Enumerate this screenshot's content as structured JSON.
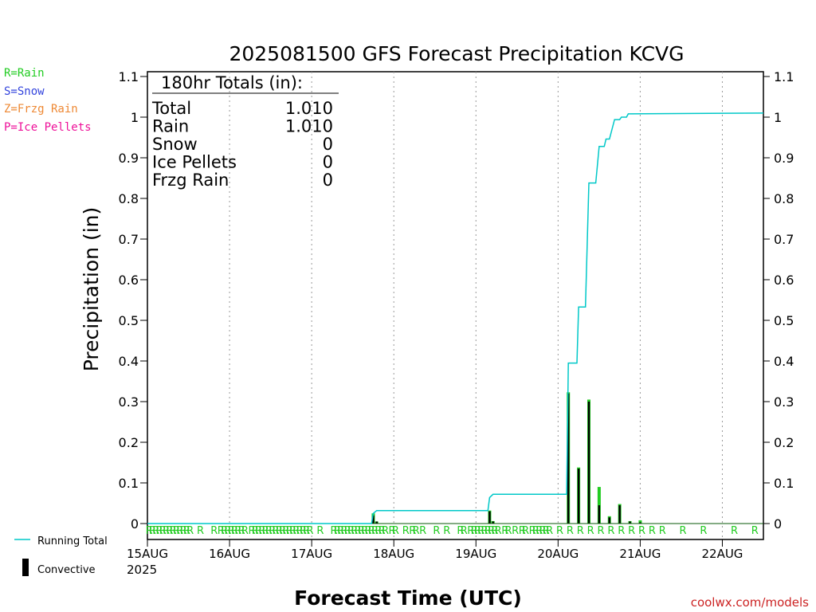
{
  "chart_data": {
    "type": "bar",
    "title": "2025081500 GFS Forecast Precipitation KCVG",
    "xlabel": "Forecast Time (UTC)",
    "ylabel": "Precipitation (in)",
    "ylim": [
      0,
      1.1
    ],
    "yticks": [
      0,
      0.1,
      0.2,
      0.3,
      0.4,
      0.5,
      0.6,
      0.7,
      0.8,
      0.9,
      1,
      1.1
    ],
    "ytick_labels": [
      "0",
      "0.1",
      "0.2",
      "0.3",
      "0.4",
      "0.5",
      "0.6",
      "0.7",
      "0.8",
      "0.9",
      "1",
      "1.1"
    ],
    "x_days": [
      "15AUG",
      "16AUG",
      "17AUG",
      "18AUG",
      "19AUG",
      "20AUG",
      "21AUG",
      "22AUG"
    ],
    "x_year": "2025",
    "xlim_hours": [
      0,
      180
    ],
    "grid": "vertical dotted at each day",
    "legend_left": [
      {
        "label": "R=Rain",
        "color": "#22cc22"
      },
      {
        "label": "S=Snow",
        "color": "#3344dd"
      },
      {
        "label": "Z=Frzg Rain",
        "color": "#ee8833"
      },
      {
        "label": "P=Ice Pellets",
        "color": "#ee1199"
      }
    ],
    "legend_bottom": [
      {
        "label": "Running Total",
        "color": "#00c8c8",
        "kind": "line"
      },
      {
        "label": "Convective",
        "color": "#000000",
        "kind": "bar"
      }
    ],
    "totals": {
      "header": "180hr Totals (in):",
      "rows": [
        {
          "name": "Total",
          "value": "1.010"
        },
        {
          "name": "Rain",
          "value": "1.010"
        },
        {
          "name": "Snow",
          "value": "0"
        },
        {
          "name": "Ice Pellets",
          "value": "0"
        },
        {
          "name": "Frzg Rain",
          "value": "0"
        }
      ]
    },
    "precip_bars": [
      {
        "hour": 66,
        "total": 0.025,
        "convective": 0.02
      },
      {
        "hour": 67,
        "total": 0.005,
        "convective": 0.005
      },
      {
        "hour": 100,
        "total": 0.032,
        "convective": 0.03
      },
      {
        "hour": 101,
        "total": 0.006,
        "convective": 0.005
      },
      {
        "hour": 123,
        "total": 0.323,
        "convective": 0.32
      },
      {
        "hour": 126,
        "total": 0.138,
        "convective": 0.135
      },
      {
        "hour": 129,
        "total": 0.305,
        "convective": 0.3
      },
      {
        "hour": 132,
        "total": 0.09,
        "convective": 0.045
      },
      {
        "hour": 135,
        "total": 0.018,
        "convective": 0.015
      },
      {
        "hour": 138,
        "total": 0.048,
        "convective": 0.045
      },
      {
        "hour": 141,
        "total": 0.006,
        "convective": 0.005
      },
      {
        "hour": 144,
        "total": 0.008,
        "convective": 0.003
      }
    ],
    "running_total": [
      [
        0,
        0
      ],
      [
        65.5,
        0
      ],
      [
        66,
        0.025
      ],
      [
        67,
        0.032
      ],
      [
        99.5,
        0.032
      ],
      [
        100,
        0.064
      ],
      [
        101,
        0.072
      ],
      [
        122.5,
        0.072
      ],
      [
        123,
        0.395
      ],
      [
        125.5,
        0.395
      ],
      [
        126,
        0.533
      ],
      [
        128,
        0.533
      ],
      [
        129,
        0.838
      ],
      [
        131,
        0.838
      ],
      [
        132,
        0.928
      ],
      [
        133.5,
        0.928
      ],
      [
        134,
        0.946
      ],
      [
        135,
        0.946
      ],
      [
        136.5,
        0.994
      ],
      [
        138,
        0.994
      ],
      [
        138.5,
        1.0
      ],
      [
        140,
        1.0
      ],
      [
        140.5,
        1.008
      ],
      [
        180,
        1.01
      ]
    ],
    "ptype_markers": {
      "letter": "R",
      "color": "#22cc22",
      "hours": [
        0.5,
        1.5,
        2.5,
        3.5,
        4.5,
        5.5,
        6.5,
        7.5,
        8.5,
        9.5,
        10.5,
        11.5,
        12.5,
        15.5,
        19.5,
        21.5,
        22.5,
        23.5,
        24.5,
        25.5,
        26.5,
        27.5,
        28.5,
        30.5,
        31.5,
        32.5,
        33.5,
        34.5,
        35.5,
        36.5,
        37.5,
        38.5,
        39.5,
        40.5,
        41.5,
        42.5,
        43.5,
        44.5,
        45.5,
        46.5,
        47.5,
        50.5,
        54.5,
        55.5,
        56.5,
        57.5,
        58.5,
        59.5,
        60.5,
        61.5,
        62.5,
        63.5,
        64.5,
        65.5,
        66.5,
        67.5,
        68.5,
        69.5,
        71.5,
        72.5,
        75.5,
        77.5,
        78.5,
        80.5,
        84.5,
        87.5,
        91.5,
        92.5,
        94.5,
        95.5,
        96.5,
        97.5,
        98.5,
        99.5,
        100.5,
        101.5,
        102.5,
        104.5,
        105.5,
        107.5,
        109.5,
        110.5,
        112.5,
        113.5,
        114.5,
        115.5,
        116.5,
        117.5,
        120.5,
        123.5,
        126.5,
        129.5,
        132.5,
        135.5,
        138.5,
        141.5,
        144.5,
        147.5,
        150.5,
        156.5,
        162.5,
        171.5,
        177.5
      ]
    }
  },
  "footer": {
    "credit": "coolwx.com/models"
  }
}
